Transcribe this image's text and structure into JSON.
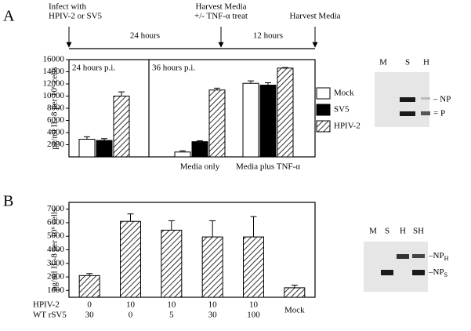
{
  "panel_labels": [
    "A",
    "B"
  ],
  "timeline": {
    "events": [
      [
        "Infect with",
        "HPIV-2 or SV5"
      ],
      [
        "Harvest Media",
        "+/- TNF-α treat"
      ],
      [
        "Harvest Media"
      ]
    ],
    "intervals": [
      "24 hours",
      "12 hours"
    ]
  },
  "chart_data": [
    {
      "type": "bar",
      "y_label": "pg/ml IL-8 per 10⁶ cells",
      "ylim": [
        0,
        16000
      ],
      "yticks": [
        2000,
        4000,
        6000,
        8000,
        10000,
        12000,
        14000,
        16000
      ],
      "categories": [
        null,
        "Media only",
        "Media plus TNF-α"
      ],
      "annotations": [
        "24 hours p.i.",
        "36 hours p.i."
      ],
      "series": [
        {
          "name": "Mock",
          "color": "#ffffff",
          "hatch": false,
          "values": [
            2900,
            800,
            12100
          ],
          "errors": [
            400,
            200,
            400
          ]
        },
        {
          "name": "SV5",
          "color": "#000000",
          "hatch": false,
          "values": [
            2700,
            2500,
            11800
          ],
          "errors": [
            300,
            150,
            400
          ]
        },
        {
          "name": "HPIV-2",
          "color": "#000000",
          "hatch": true,
          "values": [
            10000,
            11000,
            14600
          ],
          "errors": [
            700,
            300,
            100
          ]
        }
      ]
    },
    {
      "type": "bar",
      "y_label": "pg/ml IL-8 per 10⁶ cells",
      "ylim": [
        500,
        7500
      ],
      "yticks": [
        1000,
        2000,
        3000,
        4000,
        5000,
        6000,
        7000
      ],
      "categories": [
        null,
        null,
        null,
        null,
        null,
        "Mock"
      ],
      "x_rows": [
        {
          "name": "HPIV-2",
          "labels": [
            0,
            10,
            10,
            10,
            10,
            null
          ]
        },
        {
          "name": "WT rSV5",
          "labels": [
            30,
            0,
            5,
            30,
            100,
            null
          ]
        }
      ],
      "series": [
        {
          "color": "#000000",
          "hatch": true,
          "values": [
            2100,
            6100,
            5450,
            4950,
            4950,
            1200
          ],
          "errors": [
            150,
            550,
            700,
            1200,
            1500,
            200
          ]
        }
      ]
    }
  ],
  "gels": [
    {
      "lanes": [
        "M",
        "S",
        "H"
      ],
      "bands": [
        {
          "mark": "– NP"
        },
        {
          "mark": "= P"
        }
      ]
    },
    {
      "lanes": [
        "M",
        "S",
        "H",
        "SH"
      ],
      "bands": [
        {
          "mark": "–NP",
          "sub": "H"
        },
        {
          "mark": "–NP",
          "sub": "S"
        }
      ]
    }
  ]
}
